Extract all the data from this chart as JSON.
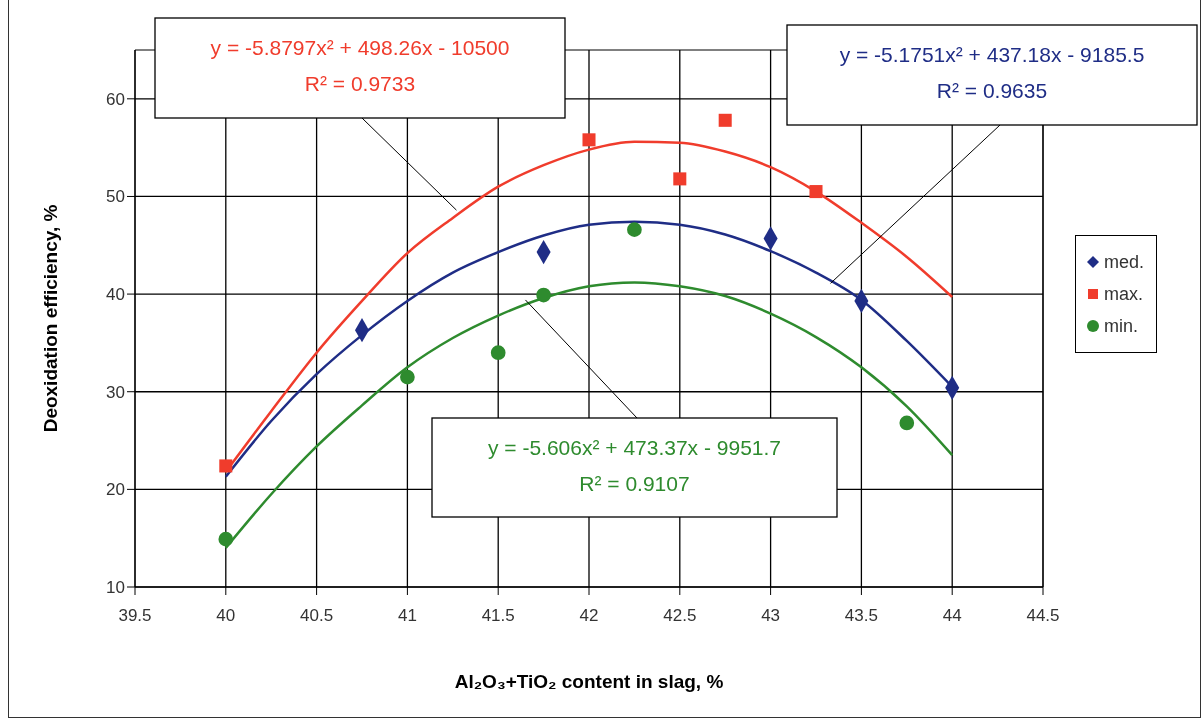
{
  "chart_data": {
    "type": "scatter",
    "xlabel": "Al₂O₃+TiO₂ content in slag, %",
    "ylabel": "Deoxidation efficiency, %",
    "xlim": [
      39.5,
      44.5
    ],
    "xticks": [
      {
        "value": 39.5,
        "label": "39.5"
      },
      {
        "value": 40,
        "label": "40"
      },
      {
        "value": 40.5,
        "label": "40.5"
      },
      {
        "value": 41,
        "label": "41"
      },
      {
        "value": 41.5,
        "label": "41.5"
      },
      {
        "value": 42,
        "label": "42"
      },
      {
        "value": 42.5,
        "label": "42.5"
      },
      {
        "value": 43,
        "label": "43"
      },
      {
        "value": 43.5,
        "label": "43.5"
      },
      {
        "value": 44,
        "label": "44"
      },
      {
        "value": 44.5,
        "label": "44.5"
      }
    ],
    "ylim": [
      10,
      65
    ],
    "yticks": [
      10,
      20,
      30,
      40,
      50,
      60
    ],
    "grid": true,
    "legend": "right",
    "series": [
      {
        "name": "med.",
        "color": "#1f2d86",
        "marker": "diamond",
        "x": [
          40.75,
          41.75,
          43,
          43.5,
          44
        ],
        "values": [
          36.3,
          44.3,
          45.7,
          39.3,
          30.4
        ]
      },
      {
        "name": "max.",
        "color": "#f03c2c",
        "marker": "square",
        "x": [
          40,
          42,
          42.5,
          42.75,
          43.25
        ],
        "values": [
          22.4,
          55.8,
          51.8,
          57.8,
          50.5
        ]
      },
      {
        "name": "min.",
        "color": "#2e8b2e",
        "marker": "circle",
        "x": [
          40,
          41,
          41.5,
          41.75,
          42.25,
          43.75
        ],
        "values": [
          14.9,
          31.5,
          34,
          39.9,
          46.6,
          26.8
        ]
      },
      {
        "type": "line",
        "color": "#f03c2c",
        "marker": "none",
        "x": [
          40,
          40.25,
          40.5,
          40.75,
          41,
          41.25,
          41.5,
          41.75,
          42,
          42.25,
          42.5,
          42.75,
          43,
          43.25,
          43.5,
          43.75,
          44
        ],
        "values": [
          21.8,
          28,
          34,
          39.3,
          44.2,
          47.8,
          51,
          53.2,
          54.8,
          55.6,
          55.5,
          54.6,
          53,
          50.5,
          47.3,
          43.8,
          39.7
        ]
      },
      {
        "type": "line",
        "color": "#1f2d86",
        "marker": "none",
        "x": [
          40,
          40.25,
          40.5,
          40.75,
          41,
          41.25,
          41.5,
          41.75,
          42,
          42.25,
          42.5,
          42.75,
          43,
          43.25,
          43.5,
          43.75,
          44
        ],
        "values": [
          21.3,
          27,
          31.8,
          35.8,
          39.3,
          42.2,
          44.3,
          46,
          47.1,
          47.4,
          47.1,
          46.1,
          44.4,
          42.2,
          39.4,
          35.2,
          30.5
        ]
      },
      {
        "type": "line",
        "color": "#2e8b2e",
        "marker": "none",
        "x": [
          40,
          40.25,
          40.5,
          40.75,
          41,
          41.25,
          41.5,
          41.75,
          42,
          42.25,
          42.5,
          42.75,
          43,
          43.25,
          43.5,
          43.75,
          44
        ],
        "values": [
          14,
          19.5,
          24.4,
          28.6,
          32.5,
          35.5,
          37.8,
          39.6,
          40.8,
          41.2,
          40.8,
          39.8,
          38,
          35.6,
          32.5,
          28.5,
          23.5
        ]
      }
    ],
    "annotations": [
      {
        "text": "y = -5.8797x² + 498.26x - 10500\nR² = 0.9733",
        "x": 41.27,
        "y": 48.6
      },
      {
        "text": "y = -5.1751x² + 437.18x - 9185.5\nR² = 0.9635",
        "x": 43.33,
        "y": 41.1
      },
      {
        "text": "y = -5.606x² + 473.37x - 9951.7\nR² = 0.9107",
        "x": 41.65,
        "y": 39.4
      }
    ]
  }
}
